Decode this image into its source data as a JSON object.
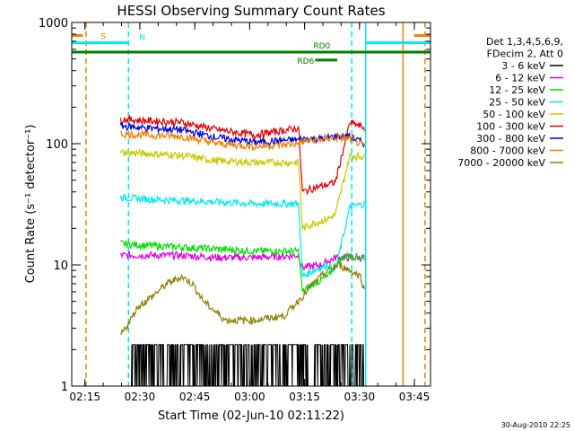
{
  "chart_data": {
    "type": "line",
    "title": "HESSI Observing Summary Count Rates",
    "xlabel": "Start Time (02-Jun-10 02:11:22)",
    "ylabel": "Count Rate (s⁻¹ detector⁻¹)",
    "x_unit": "minutes since 02:11:22",
    "xlim": [
      0,
      98
    ],
    "ylim": [
      1,
      1000
    ],
    "y_scale": "log",
    "grid": false,
    "legend_position": "right",
    "x_ticks": [
      {
        "label": "02:15",
        "value": 3.6
      },
      {
        "label": "02:30",
        "value": 18.6
      },
      {
        "label": "02:45",
        "value": 33.6
      },
      {
        "label": "03:00",
        "value": 48.6
      },
      {
        "label": "03:15",
        "value": 63.6
      },
      {
        "label": "03:30",
        "value": 78.6
      },
      {
        "label": "03:45",
        "value": 93.6
      }
    ],
    "y_ticks": [
      {
        "label": "1",
        "value": 1
      },
      {
        "label": "10",
        "value": 10
      },
      {
        "label": "100",
        "value": 100
      },
      {
        "label": "1000",
        "value": 1000
      }
    ],
    "legend_header": [
      "Det 1,3,4,5,6,9,",
      "FDecim 2, Att 0"
    ],
    "series": [
      {
        "name": "3 - 6 keV",
        "color": "#000000",
        "x": [
          13.3,
          16,
          16.6,
          63,
          66,
          66.6,
          80
        ],
        "y": [
          1,
          1,
          2.2,
          2.2,
          1,
          2.2,
          2.2
        ]
      },
      {
        "name": "6 - 12 keV",
        "color": "#e000e0",
        "x": [
          13.3,
          20,
          30,
          40,
          50,
          62,
          63,
          68,
          72,
          76,
          80
        ],
        "y": [
          12,
          12,
          12,
          11.5,
          11.5,
          12,
          9.5,
          10,
          11.5,
          11.5,
          11.5
        ]
      },
      {
        "name": "12 - 25 keV",
        "color": "#00e000",
        "x": [
          13.3,
          20,
          30,
          40,
          50,
          62,
          63,
          66,
          70,
          72,
          75,
          80
        ],
        "y": [
          15,
          14.5,
          14,
          13.5,
          13,
          13,
          6,
          7,
          8,
          10,
          12,
          11.5
        ]
      },
      {
        "name": "25 - 50 keV",
        "color": "#00e8f0",
        "x": [
          13.3,
          20,
          30,
          40,
          50,
          62,
          63,
          66,
          70,
          72,
          76,
          80
        ],
        "y": [
          36,
          35,
          34,
          33,
          32,
          32,
          8,
          9,
          10,
          9,
          30,
          32
        ]
      },
      {
        "name": "50 - 100 keV",
        "color": "#c8c800",
        "x": [
          13.3,
          20,
          30,
          40,
          50,
          62,
          63,
          66,
          70,
          72,
          76,
          80
        ],
        "y": [
          85,
          83,
          80,
          72,
          70,
          70,
          20,
          22,
          24,
          26,
          80,
          78
        ]
      },
      {
        "name": "100 - 300 keV",
        "color": "#e00000",
        "x": [
          13.3,
          20,
          30,
          40,
          50,
          62,
          63,
          66,
          70,
          72,
          76,
          80
        ],
        "y": [
          160,
          155,
          150,
          130,
          118,
          135,
          40,
          43,
          46,
          48,
          150,
          135
        ]
      },
      {
        "name": "300 - 800 keV",
        "color": "#0000d8",
        "x": [
          13.3,
          20,
          30,
          40,
          50,
          62,
          64,
          68,
          72,
          76,
          80
        ],
        "y": [
          140,
          135,
          130,
          112,
          103,
          108,
          110,
          110,
          115,
          115,
          100
        ]
      },
      {
        "name": "800 - 7000 keV",
        "color": "#f08000",
        "x": [
          13.3,
          20,
          30,
          40,
          50,
          62,
          64,
          68,
          72,
          76,
          80
        ],
        "y": [
          120,
          118,
          115,
          100,
          95,
          100,
          105,
          108,
          112,
          110,
          95
        ]
      },
      {
        "name": "7000 - 20000 keV",
        "color": "#8a8000",
        "x": [
          13.3,
          16,
          18,
          22,
          26,
          30,
          33,
          36,
          42,
          50,
          58,
          63,
          66,
          70,
          73,
          76,
          79,
          80
        ],
        "y": [
          2.6,
          3.5,
          4.5,
          5.5,
          7,
          8,
          7,
          5,
          3.5,
          3.5,
          3.8,
          5.5,
          7,
          9,
          10,
          9,
          8,
          6
        ]
      }
    ],
    "annotations": [
      {
        "label": "S",
        "color": "#f08000",
        "x1": 0,
        "x2": 3,
        "y": 780
      },
      {
        "label": "S",
        "color": "#f08000",
        "x1": 93.5,
        "x2": 98,
        "y": 780
      },
      {
        "label": "N",
        "color": "#00e8f0",
        "x1": 0,
        "x2": 15.5,
        "y": 680
      },
      {
        "label": "N",
        "color": "#00e8f0",
        "x1": 80.5,
        "x2": 98,
        "y": 680
      },
      {
        "label": "RD0",
        "color": "#008000",
        "x1": 0,
        "x2": 98,
        "y": 570
      },
      {
        "label": "RD6",
        "color": "#008000",
        "x1": 66.5,
        "x2": 72.5,
        "y": 490
      }
    ],
    "vertical_lines": [
      {
        "x": 3.9,
        "color": "#f08000",
        "style": "dashed"
      },
      {
        "x": 15.5,
        "color": "#00e8f0",
        "style": "dashed"
      },
      {
        "x": 76.5,
        "color": "#00e8f0",
        "style": "dashed"
      },
      {
        "x": 80.3,
        "color": "#00e8f0",
        "style": "solid"
      },
      {
        "x": 90.5,
        "color": "#f08000",
        "style": "solid"
      },
      {
        "x": 96.5,
        "color": "#f08000",
        "style": "dashed"
      }
    ],
    "footer_timestamp": "30-Aug-2010 22:25"
  }
}
